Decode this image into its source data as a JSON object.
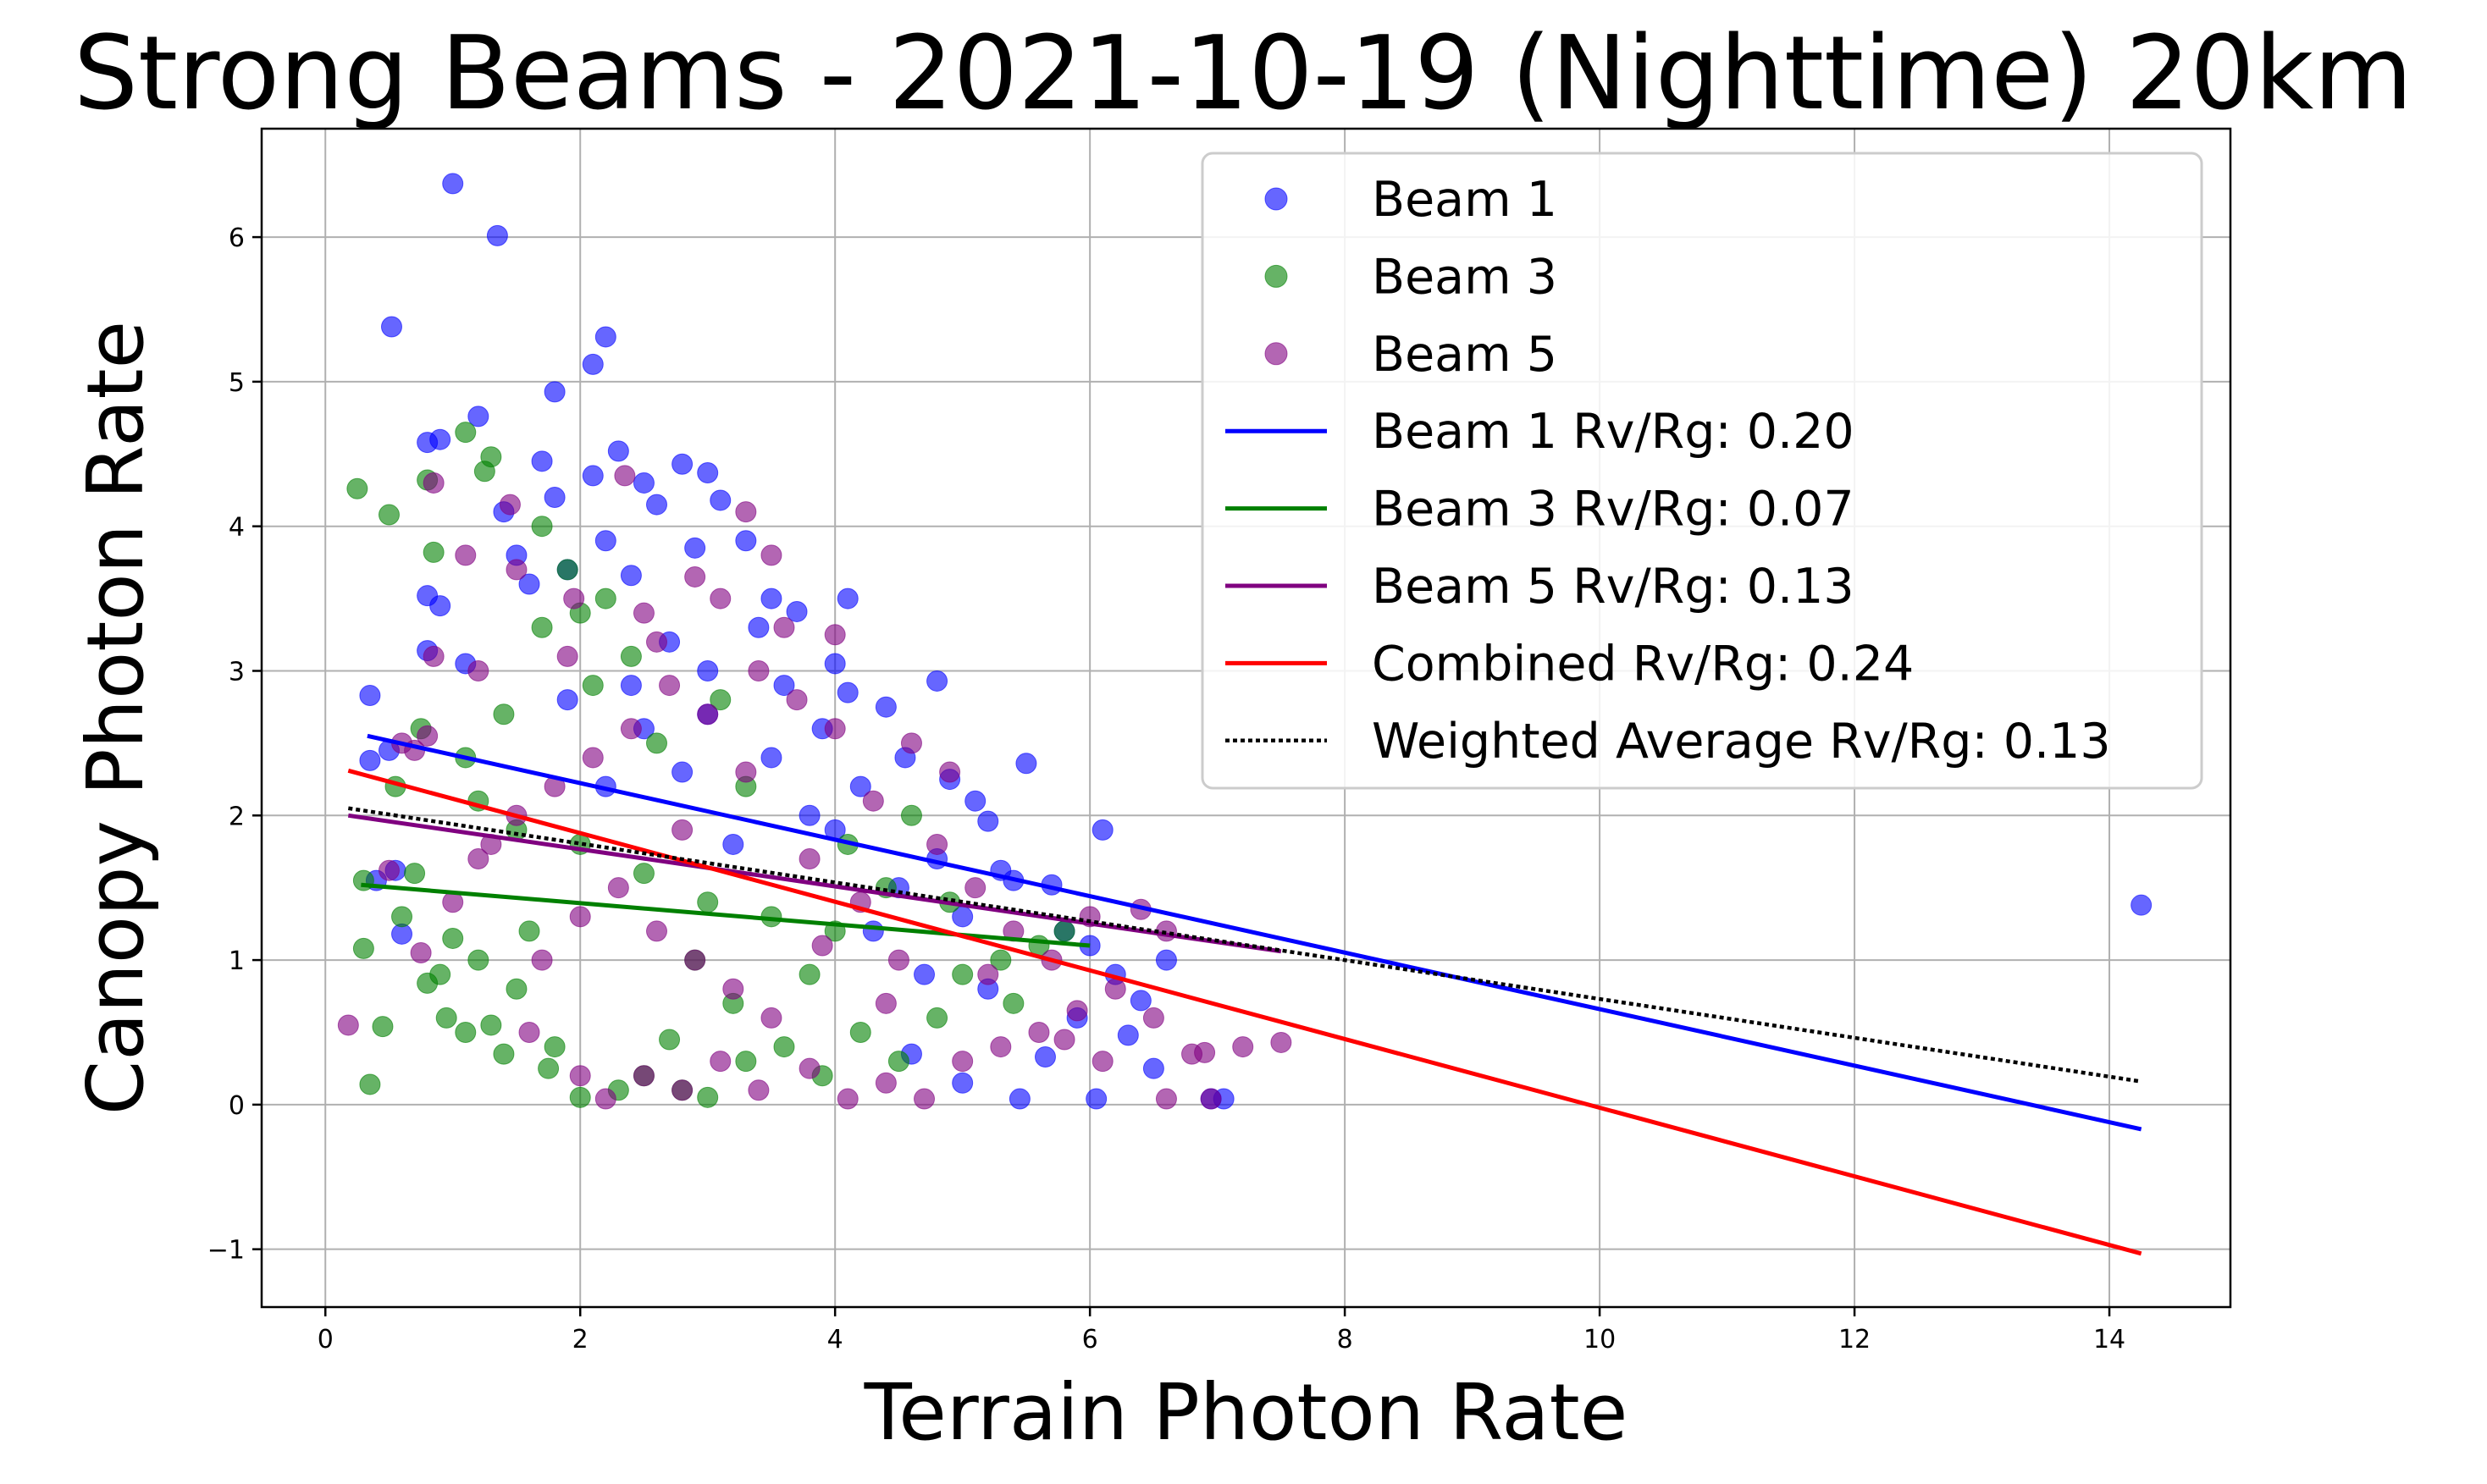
{
  "chart_data": {
    "type": "scatter",
    "title": "Strong Beams - 2021-10-19 (Nighttime) 20km",
    "xlabel": "Terrain Photon Rate",
    "ylabel": "Canopy Photon Rate",
    "xlim": [
      -0.5,
      14.95
    ],
    "ylim": [
      -1.4,
      6.75
    ],
    "x_ticks": [
      0,
      2,
      4,
      6,
      8,
      10,
      12,
      14
    ],
    "y_ticks": [
      -1,
      0,
      1,
      2,
      3,
      4,
      5,
      6
    ],
    "x_tick_labels": [
      "0",
      "2",
      "4",
      "6",
      "8",
      "10",
      "12",
      "14"
    ],
    "y_tick_labels": [
      "−1",
      "0",
      "1",
      "2",
      "3",
      "4",
      "5",
      "6"
    ],
    "grid": true,
    "legend_position": "upper-right",
    "scatter_series": [
      {
        "name": "Beam 1",
        "color": "#0000ff",
        "points": [
          [
            1.0,
            6.37
          ],
          [
            1.35,
            6.01
          ],
          [
            0.52,
            5.38
          ],
          [
            2.1,
            5.12
          ],
          [
            2.2,
            5.31
          ],
          [
            1.8,
            4.93
          ],
          [
            1.2,
            4.76
          ],
          [
            0.8,
            4.58
          ],
          [
            0.9,
            4.6
          ],
          [
            2.3,
            4.52
          ],
          [
            1.7,
            4.45
          ],
          [
            2.8,
            4.43
          ],
          [
            3.0,
            4.37
          ],
          [
            2.1,
            4.35
          ],
          [
            2.5,
            4.3
          ],
          [
            1.4,
            4.1
          ],
          [
            1.8,
            4.2
          ],
          [
            3.1,
            4.18
          ],
          [
            2.6,
            4.15
          ],
          [
            2.2,
            3.9
          ],
          [
            1.5,
            3.8
          ],
          [
            2.9,
            3.85
          ],
          [
            3.3,
            3.9
          ],
          [
            0.8,
            3.52
          ],
          [
            0.9,
            3.45
          ],
          [
            1.6,
            3.6
          ],
          [
            1.9,
            3.7
          ],
          [
            2.4,
            3.66
          ],
          [
            3.5,
            3.5
          ],
          [
            4.1,
            3.5
          ],
          [
            3.7,
            3.41
          ],
          [
            0.35,
            2.83
          ],
          [
            0.8,
            3.14
          ],
          [
            1.1,
            3.05
          ],
          [
            4.0,
            3.05
          ],
          [
            4.1,
            2.85
          ],
          [
            4.4,
            2.75
          ],
          [
            4.8,
            2.93
          ],
          [
            0.35,
            2.38
          ],
          [
            0.5,
            2.45
          ],
          [
            4.55,
            2.4
          ],
          [
            4.9,
            2.25
          ],
          [
            5.1,
            2.1
          ],
          [
            5.5,
            2.36
          ],
          [
            5.2,
            1.96
          ],
          [
            0.55,
            1.62
          ],
          [
            0.4,
            1.55
          ],
          [
            0.6,
            1.18
          ],
          [
            5.4,
            1.55
          ],
          [
            5.3,
            1.62
          ],
          [
            5.7,
            1.52
          ],
          [
            6.1,
            1.9
          ],
          [
            5.8,
            1.2
          ],
          [
            6.0,
            1.1
          ],
          [
            6.2,
            0.9
          ],
          [
            6.4,
            0.72
          ],
          [
            5.9,
            0.6
          ],
          [
            6.6,
            1.0
          ],
          [
            6.3,
            0.48
          ],
          [
            6.5,
            0.25
          ],
          [
            5.45,
            0.04
          ],
          [
            6.05,
            0.04
          ],
          [
            6.95,
            0.04
          ],
          [
            7.05,
            0.04
          ],
          [
            5.65,
            0.33
          ],
          [
            5.0,
            0.15
          ],
          [
            4.6,
            0.35
          ],
          [
            14.25,
            1.38
          ],
          [
            2.5,
            2.6
          ],
          [
            3.0,
            2.7
          ],
          [
            3.5,
            2.4
          ],
          [
            4.2,
            2.2
          ],
          [
            3.8,
            2.0
          ],
          [
            2.8,
            2.3
          ],
          [
            2.2,
            2.2
          ],
          [
            3.2,
            1.8
          ],
          [
            4.5,
            1.5
          ],
          [
            4.8,
            1.7
          ],
          [
            3.6,
            2.9
          ],
          [
            2.7,
            3.2
          ],
          [
            3.4,
            3.3
          ],
          [
            1.9,
            2.8
          ],
          [
            4.3,
            1.2
          ],
          [
            5.0,
            1.3
          ],
          [
            4.7,
            0.9
          ],
          [
            3.9,
            2.6
          ],
          [
            3.0,
            3.0
          ],
          [
            2.4,
            2.9
          ],
          [
            4.0,
            1.9
          ],
          [
            5.2,
            0.8
          ]
        ]
      },
      {
        "name": "Beam 3",
        "color": "#008000",
        "points": [
          [
            0.25,
            4.26
          ],
          [
            1.1,
            4.65
          ],
          [
            1.25,
            4.38
          ],
          [
            1.3,
            4.48
          ],
          [
            0.5,
            4.08
          ],
          [
            0.8,
            4.32
          ],
          [
            0.85,
            3.82
          ],
          [
            0.3,
            1.08
          ],
          [
            0.35,
            0.14
          ],
          [
            0.45,
            0.54
          ],
          [
            1.1,
            0.5
          ],
          [
            1.3,
            0.55
          ],
          [
            0.9,
            0.9
          ],
          [
            0.8,
            0.84
          ],
          [
            1.0,
            1.15
          ],
          [
            0.6,
            1.3
          ],
          [
            0.7,
            1.6
          ],
          [
            1.2,
            2.1
          ],
          [
            1.5,
            1.9
          ],
          [
            1.7,
            4.0
          ],
          [
            1.9,
            3.7
          ],
          [
            2.0,
            3.4
          ],
          [
            2.2,
            3.5
          ],
          [
            0.3,
            1.55
          ],
          [
            1.6,
            1.2
          ],
          [
            1.8,
            0.4
          ],
          [
            2.0,
            0.05
          ],
          [
            2.3,
            0.1
          ],
          [
            2.5,
            0.2
          ],
          [
            2.8,
            0.1
          ],
          [
            3.0,
            0.05
          ],
          [
            3.3,
            0.3
          ],
          [
            3.6,
            0.4
          ],
          [
            3.9,
            0.2
          ],
          [
            4.2,
            0.5
          ],
          [
            4.5,
            0.3
          ],
          [
            4.8,
            0.6
          ],
          [
            5.0,
            0.9
          ],
          [
            5.3,
            1.0
          ],
          [
            5.6,
            1.1
          ],
          [
            4.0,
            1.2
          ],
          [
            3.5,
            1.3
          ],
          [
            3.0,
            1.4
          ],
          [
            2.5,
            1.6
          ],
          [
            2.0,
            1.8
          ],
          [
            1.5,
            0.8
          ],
          [
            1.2,
            1.0
          ],
          [
            0.95,
            0.6
          ],
          [
            1.4,
            0.35
          ],
          [
            1.75,
            0.25
          ],
          [
            2.7,
            0.45
          ],
          [
            3.2,
            0.7
          ],
          [
            3.8,
            0.9
          ],
          [
            4.4,
            1.5
          ],
          [
            4.1,
            1.8
          ],
          [
            3.3,
            2.2
          ],
          [
            2.6,
            2.5
          ],
          [
            2.1,
            2.9
          ],
          [
            1.7,
            3.3
          ],
          [
            1.4,
            2.7
          ],
          [
            1.1,
            2.4
          ],
          [
            0.75,
            2.6
          ],
          [
            0.55,
            2.2
          ],
          [
            4.9,
            1.4
          ],
          [
            5.4,
            0.7
          ],
          [
            5.8,
            1.2
          ],
          [
            4.6,
            2.0
          ],
          [
            3.1,
            2.8
          ],
          [
            2.4,
            3.1
          ],
          [
            2.9,
            1.0
          ]
        ]
      },
      {
        "name": "Beam 5",
        "color": "#800080",
        "points": [
          [
            0.18,
            0.55
          ],
          [
            0.7,
            2.45
          ],
          [
            0.85,
            4.3
          ],
          [
            1.1,
            3.8
          ],
          [
            1.45,
            4.15
          ],
          [
            2.35,
            4.35
          ],
          [
            2.9,
            3.65
          ],
          [
            3.3,
            4.1
          ],
          [
            3.5,
            3.8
          ],
          [
            1.5,
            3.7
          ],
          [
            1.95,
            3.5
          ],
          [
            2.5,
            3.4
          ],
          [
            3.1,
            3.5
          ],
          [
            3.6,
            3.3
          ],
          [
            4.0,
            3.25
          ],
          [
            0.85,
            3.1
          ],
          [
            1.2,
            3.0
          ],
          [
            0.5,
            1.62
          ],
          [
            0.6,
            2.5
          ],
          [
            0.8,
            2.55
          ],
          [
            0.75,
            1.05
          ],
          [
            1.0,
            1.4
          ],
          [
            1.3,
            1.8
          ],
          [
            1.6,
            0.5
          ],
          [
            2.0,
            0.2
          ],
          [
            2.2,
            0.04
          ],
          [
            2.5,
            0.2
          ],
          [
            2.8,
            0.1
          ],
          [
            3.1,
            0.3
          ],
          [
            3.4,
            0.1
          ],
          [
            3.8,
            0.25
          ],
          [
            4.1,
            0.04
          ],
          [
            4.4,
            0.15
          ],
          [
            4.7,
            0.04
          ],
          [
            5.0,
            0.3
          ],
          [
            5.3,
            0.4
          ],
          [
            5.6,
            0.5
          ],
          [
            5.9,
            0.65
          ],
          [
            6.2,
            0.8
          ],
          [
            6.5,
            0.6
          ],
          [
            6.8,
            0.35
          ],
          [
            6.9,
            0.36
          ],
          [
            6.95,
            0.04
          ],
          [
            7.2,
            0.4
          ],
          [
            7.5,
            0.43
          ],
          [
            6.6,
            0.04
          ],
          [
            6.1,
            0.3
          ],
          [
            6.4,
            1.35
          ],
          [
            6.6,
            1.2
          ],
          [
            6.0,
            1.3
          ],
          [
            5.7,
            1.0
          ],
          [
            5.4,
            1.2
          ],
          [
            5.1,
            1.5
          ],
          [
            4.8,
            1.8
          ],
          [
            4.9,
            2.3
          ],
          [
            4.6,
            2.5
          ],
          [
            4.3,
            2.1
          ],
          [
            4.0,
            2.6
          ],
          [
            3.7,
            2.8
          ],
          [
            3.4,
            3.0
          ],
          [
            3.0,
            2.7
          ],
          [
            2.7,
            2.9
          ],
          [
            2.4,
            2.6
          ],
          [
            2.1,
            2.4
          ],
          [
            1.8,
            2.2
          ],
          [
            1.5,
            2.0
          ],
          [
            1.2,
            1.7
          ],
          [
            2.3,
            1.5
          ],
          [
            2.6,
            1.2
          ],
          [
            2.9,
            1.0
          ],
          [
            3.2,
            0.8
          ],
          [
            3.5,
            0.6
          ],
          [
            3.9,
            1.1
          ],
          [
            4.2,
            1.4
          ],
          [
            4.5,
            1.0
          ],
          [
            2.0,
            1.3
          ],
          [
            1.7,
            1.0
          ],
          [
            2.8,
            1.9
          ],
          [
            3.3,
            2.3
          ],
          [
            3.8,
            1.7
          ],
          [
            4.4,
            0.7
          ],
          [
            5.2,
            0.9
          ],
          [
            5.8,
            0.45
          ],
          [
            1.9,
            3.1
          ],
          [
            2.6,
            3.2
          ]
        ]
      }
    ],
    "line_series": [
      {
        "name": "Beam 1 Rv/Rg: 0.20",
        "color": "#0000ff",
        "style": "solid",
        "x": [
          0.33,
          14.25
        ],
        "y": [
          2.55,
          -0.17
        ]
      },
      {
        "name": "Beam 3 Rv/Rg: 0.07",
        "color": "#008000",
        "style": "solid",
        "x": [
          0.28,
          6.0
        ],
        "y": [
          1.52,
          1.1
        ]
      },
      {
        "name": "Beam 5 Rv/Rg: 0.13",
        "color": "#800080",
        "style": "solid",
        "x": [
          0.18,
          7.5
        ],
        "y": [
          2.0,
          1.06
        ]
      },
      {
        "name": "Combined Rv/Rg: 0.24",
        "color": "#ff0000",
        "style": "solid",
        "x": [
          0.18,
          14.25
        ],
        "y": [
          2.31,
          -1.03
        ]
      },
      {
        "name": "Weighted Average Rv/Rg: 0.13",
        "color": "#000000",
        "style": "dotted",
        "x": [
          0.18,
          14.25
        ],
        "y": [
          2.05,
          0.16
        ]
      }
    ]
  }
}
